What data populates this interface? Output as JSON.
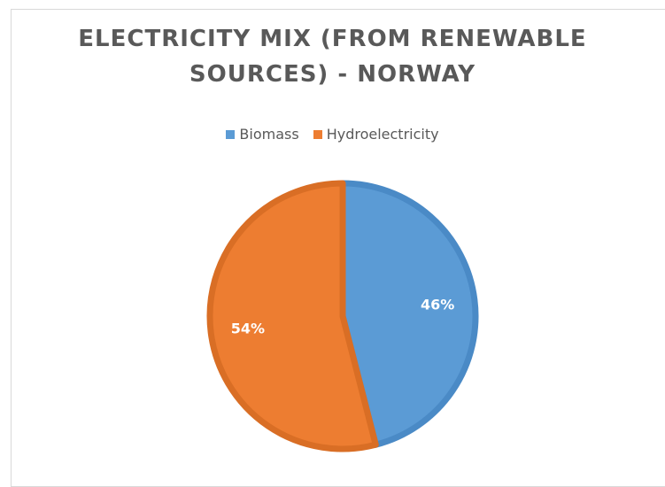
{
  "chart_data": {
    "type": "pie",
    "title": "ELECTRICITY MIX (FROM RENEWABLE SOURCES) - NORWAY",
    "title_lines": [
      "ELECTRICITY MIX (FROM RENEWABLE",
      "SOURCES) - NORWAY"
    ],
    "legend_position": "top",
    "categories": [
      "Biomass",
      "Hydroelectricity"
    ],
    "values": [
      46,
      54
    ],
    "labels": [
      "46%",
      "54%"
    ],
    "colors": [
      "#5b9bd5",
      "#ed7d31"
    ],
    "border_colors": [
      "#4a8ac6",
      "#d96e25"
    ]
  }
}
